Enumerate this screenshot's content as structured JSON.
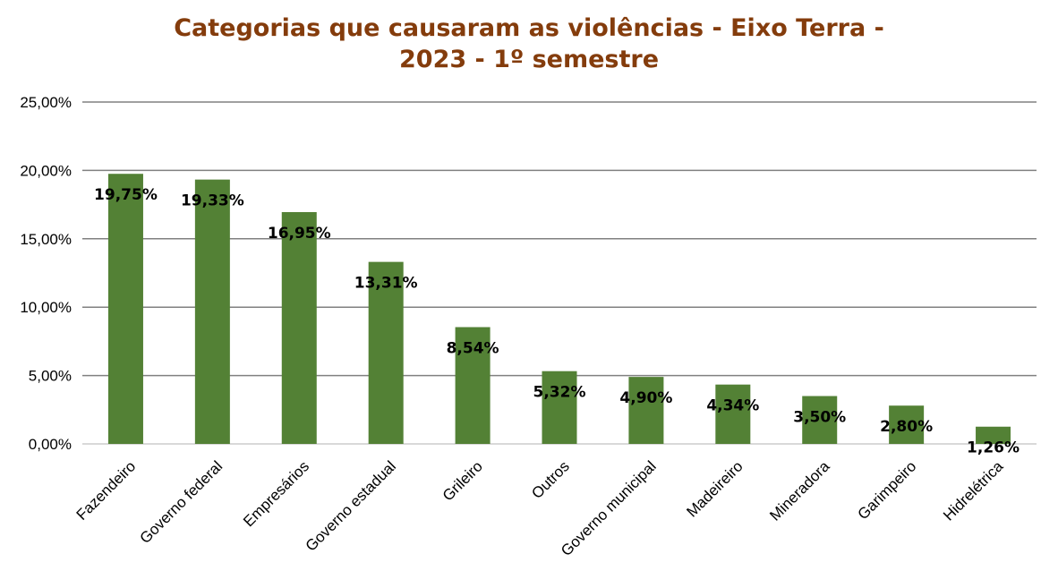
{
  "chart_data": {
    "type": "bar",
    "title_lines": [
      "Categorias que causaram as violências - Eixo Terra -",
      "2023 - 1º semestre"
    ],
    "xlabel": "",
    "ylabel": "",
    "ylim": [
      0,
      25
    ],
    "y_ticks": [
      0,
      5,
      10,
      15,
      20,
      25
    ],
    "y_tick_labels": [
      "0,00%",
      "5,00%",
      "10,00%",
      "15,00%",
      "20,00%",
      "25,00%"
    ],
    "categories": [
      "Fazendeiro",
      "Governo federal",
      "Empresários",
      "Governo estadual",
      "Grileiro",
      "Outros",
      "Governo municipal",
      "Madeireiro",
      "Mineradora",
      "Garimpeiro",
      "Hidrelétrica"
    ],
    "values": [
      19.75,
      19.33,
      16.95,
      13.31,
      8.54,
      5.32,
      4.9,
      4.34,
      3.5,
      2.8,
      1.26
    ],
    "data_labels": [
      "19,75%",
      "19,33%",
      "16,95%",
      "13,31%",
      "8,54%",
      "5,32%",
      "4,90%",
      "4,34%",
      "3,50%",
      "2,80%",
      "1,26%"
    ],
    "grid": true,
    "legend": "none",
    "colors": {
      "bar": "#538135",
      "title": "#843c0c",
      "grid": "#808080",
      "baseline": "#d9d9d9"
    }
  }
}
